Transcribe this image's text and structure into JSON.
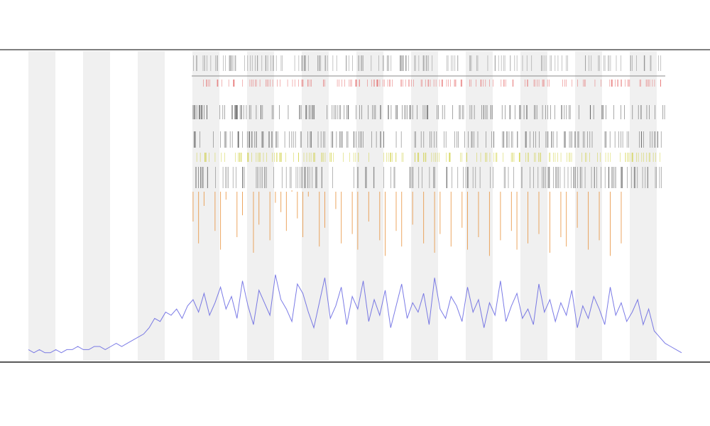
{
  "chart_data": {
    "type": "line",
    "xlim": [
      0,
      119
    ],
    "ylim": [
      0,
      100
    ],
    "series": [
      {
        "color": "#5a5ae0",
        "values": [
          4,
          3,
          4,
          3,
          3,
          4,
          3,
          4,
          4,
          5,
          4,
          4,
          5,
          5,
          4,
          5,
          6,
          5,
          6,
          7,
          8,
          9,
          11,
          14,
          13,
          16,
          15,
          17,
          14,
          18,
          20,
          16,
          22,
          15,
          19,
          24,
          17,
          21,
          14,
          26,
          18,
          12,
          23,
          19,
          15,
          28,
          20,
          17,
          13,
          25,
          22,
          16,
          11,
          19,
          27,
          14,
          18,
          24,
          12,
          21,
          17,
          26,
          13,
          20,
          15,
          23,
          11,
          18,
          25,
          14,
          19,
          16,
          22,
          12,
          27,
          17,
          14,
          21,
          18,
          13,
          24,
          16,
          20,
          11,
          19,
          15,
          26,
          13,
          18,
          22,
          14,
          17,
          12,
          25,
          16,
          20,
          13,
          19,
          15,
          23,
          11,
          18,
          14,
          21,
          17,
          12,
          24,
          15,
          19,
          13,
          16,
          20,
          12,
          17,
          10,
          8,
          6,
          5,
          4,
          3
        ]
      },
      {
        "color": "#e8913a",
        "values": [
          null,
          null,
          null,
          null,
          null,
          null,
          null,
          null,
          null,
          null,
          null,
          null,
          null,
          null,
          null,
          null,
          null,
          null,
          null,
          null,
          null,
          null,
          null,
          null,
          null,
          null,
          null,
          null,
          null,
          null,
          45,
          38,
          50,
          null,
          42,
          36,
          52,
          null,
          40,
          47,
          null,
          35,
          44,
          null,
          39,
          51,
          48,
          42,
          55,
          46,
          40,
          53,
          null,
          37,
          43,
          null,
          49,
          38,
          null,
          41,
          36,
          null,
          45,
          null,
          39,
          34,
          null,
          42,
          37,
          null,
          44,
          null,
          38,
          null,
          35,
          41,
          null,
          37,
          null,
          43,
          36,
          null,
          40,
          null,
          34,
          null,
          39,
          null,
          42,
          36,
          null,
          38,
          null,
          41,
          null,
          35,
          null,
          40,
          37,
          null,
          43,
          null,
          36,
          null,
          39,
          null,
          34,
          null,
          38,
          null,
          null,
          null,
          null,
          null,
          null,
          null,
          null,
          null,
          null,
          null
        ]
      }
    ]
  }
}
